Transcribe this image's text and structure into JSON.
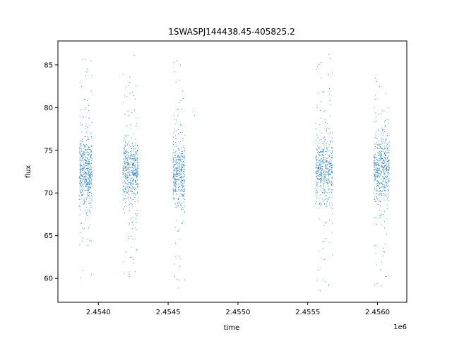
{
  "chart_data": {
    "type": "scatter",
    "title": "1SWASPJ144438.45-405825.2",
    "xlabel": "time",
    "ylabel": "flux",
    "x_offset_label": "1e6",
    "xlim": [
      2.45371,
      2.45621
    ],
    "ylim": [
      57.2,
      87.8
    ],
    "x_ticks": [
      2.454,
      2.4545,
      2.455,
      2.4555,
      2.456
    ],
    "x_tick_labels": [
      "2.4540",
      "2.4545",
      "2.4550",
      "2.4555",
      "2.4560"
    ],
    "y_ticks": [
      60,
      65,
      70,
      75,
      80,
      85
    ],
    "y_tick_labels": [
      "60",
      "65",
      "70",
      "75",
      "80",
      "85"
    ],
    "grid": false,
    "marker_color": "#1f77b4",
    "series": [
      {
        "clusters": [
          {
            "x_range": [
              2.453865,
              2.453955
            ],
            "center": 72.5,
            "core_sd": 2.0,
            "outlier_range": [
              59.6,
              86.5
            ],
            "points": 520
          },
          {
            "x_range": [
              2.454175,
              2.454285
            ],
            "center": 72.5,
            "core_sd": 1.9,
            "outlier_range": [
              59.2,
              86.4
            ],
            "points": 520
          },
          {
            "x_range": [
              2.454535,
              2.45462
            ],
            "center": 72.4,
            "core_sd": 1.8,
            "outlier_range": [
              58.4,
              86.5
            ],
            "points": 420
          },
          {
            "x_range": [
              2.455555,
              2.45568
            ],
            "center": 72.8,
            "core_sd": 1.9,
            "outlier_range": [
              58.5,
              86.2
            ],
            "points": 520
          },
          {
            "x_range": [
              2.455975,
              2.456085
            ],
            "center": 72.8,
            "core_sd": 1.9,
            "outlier_range": [
              58.5,
              86.0
            ],
            "points": 520
          }
        ],
        "isolated_points": [
          {
            "x": 2.45468,
            "y": 79.5
          },
          {
            "x": 2.45469,
            "y": 79.1
          }
        ]
      }
    ]
  }
}
